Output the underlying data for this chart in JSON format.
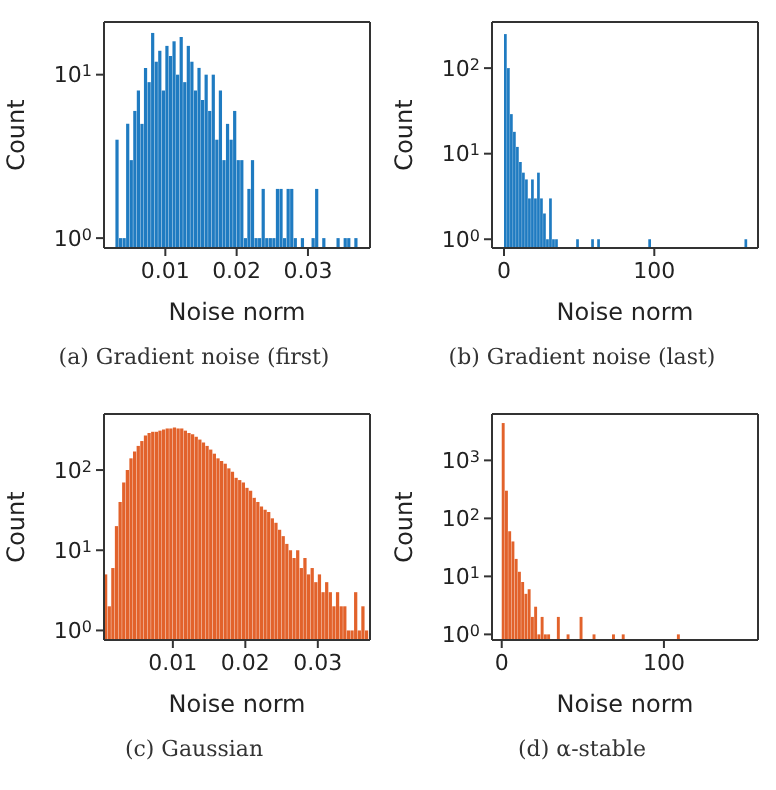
{
  "chart_data": [
    {
      "type": "histogram",
      "title": "(a) Gradient noise (first)",
      "xlabel": "Noise norm",
      "ylabel": "Count",
      "color": "#1f7bc1",
      "log": true,
      "bins": [
        0.003,
        0.0035,
        0.004,
        0.0045,
        0.005,
        0.0055,
        0.006,
        0.0065,
        0.007,
        0.0075,
        0.008,
        0.0085,
        0.009,
        0.0095,
        0.01,
        0.0105,
        0.011,
        0.0115,
        0.012,
        0.0125,
        0.013,
        0.0135,
        0.014,
        0.0145,
        0.015,
        0.0155,
        0.016,
        0.0165,
        0.017,
        0.0175,
        0.018,
        0.0185,
        0.019,
        0.0195,
        0.02,
        0.0205,
        0.021,
        0.0215,
        0.022,
        0.0225,
        0.023,
        0.0235,
        0.024,
        0.0245,
        0.025,
        0.0255,
        0.026,
        0.0265,
        0.027,
        0.0275,
        0.028,
        0.0285,
        0.029,
        0.0295,
        0.03,
        0.0305,
        0.031,
        0.0315,
        0.032,
        0.0325,
        0.033,
        0.0335,
        0.034,
        0.0345,
        0.035,
        0.0355,
        0.036,
        0.0365,
        0.037,
        0.0375
      ],
      "values": [
        4,
        1,
        1,
        5,
        3,
        6,
        8,
        5,
        11,
        9,
        18,
        12,
        14,
        8,
        15,
        13,
        16,
        10,
        17,
        9,
        15,
        12,
        8,
        11,
        7,
        10,
        6,
        10,
        4,
        8,
        3,
        5,
        4,
        6,
        3,
        3,
        1,
        2,
        3,
        1,
        1,
        2,
        1,
        1,
        1,
        2,
        2,
        1,
        2,
        2,
        1,
        null,
        1,
        null,
        null,
        1,
        2,
        null,
        1,
        null,
        null,
        null,
        1,
        null,
        1,
        1,
        null,
        1,
        null
      ],
      "xlim": [
        0.0014,
        0.0387
      ],
      "xticks": [
        0.01,
        0.02,
        0.03
      ],
      "ylim": [
        0.87,
        21
      ],
      "yticks": [
        {
          "value": 1,
          "label": "10$^{0}$"
        },
        {
          "value": 10,
          "label": "10$^{1}$"
        }
      ]
    },
    {
      "type": "histogram",
      "title": "(b) Gradient noise (last)",
      "xlabel": "Noise norm",
      "ylabel": "Count",
      "color": "#1f7bc1",
      "log": true,
      "bins": [
        0,
        2,
        4,
        6,
        8,
        10,
        12,
        14,
        16,
        18,
        20,
        22,
        24,
        26,
        28,
        30,
        32,
        34,
        36,
        38,
        40,
        42,
        44,
        46,
        48,
        50,
        52,
        54,
        56,
        58,
        60,
        62,
        64,
        66,
        68,
        70,
        72,
        74,
        76,
        78,
        80,
        82,
        84,
        86,
        88,
        90,
        92,
        94,
        96,
        98,
        100,
        102,
        104,
        106,
        108,
        110,
        112,
        114,
        116,
        118,
        120,
        122,
        124,
        126,
        128,
        130,
        132,
        134,
        136,
        138,
        140,
        142,
        144,
        146,
        148,
        150,
        152,
        154,
        156,
        158,
        160,
        162
      ],
      "values": [
        250,
        100,
        29,
        18,
        12,
        8,
        6,
        5,
        3,
        5,
        3,
        6,
        3,
        2,
        1,
        3,
        1,
        1,
        null,
        null,
        null,
        null,
        null,
        null,
        1,
        null,
        null,
        null,
        null,
        1,
        null,
        1,
        null,
        null,
        null,
        null,
        null,
        null,
        null,
        null,
        null,
        null,
        null,
        null,
        null,
        null,
        null,
        null,
        1,
        null,
        null,
        null,
        null,
        null,
        null,
        null,
        null,
        null,
        null,
        null,
        null,
        null,
        null,
        null,
        null,
        null,
        null,
        null,
        null,
        null,
        null,
        null,
        null,
        null,
        null,
        null,
        null,
        null,
        null,
        null,
        1
      ],
      "xlim": [
        -8,
        169
      ],
      "xticks": [
        0,
        100
      ],
      "ylim": [
        0.79,
        346
      ],
      "yticks": [
        {
          "value": 1,
          "label": "10$^{0}$"
        },
        {
          "value": 10,
          "label": "10$^{1}$"
        },
        {
          "value": 100,
          "label": "10$^{2}$"
        }
      ]
    },
    {
      "type": "histogram",
      "title": "(c) Gaussian",
      "xlabel": "Noise norm",
      "ylabel": "Count",
      "color": "#e2622b",
      "log": true,
      "bins": [
        0.0005,
        0.001,
        0.0015,
        0.002,
        0.0025,
        0.003,
        0.0035,
        0.004,
        0.0045,
        0.005,
        0.0055,
        0.006,
        0.0065,
        0.007,
        0.0075,
        0.008,
        0.0085,
        0.009,
        0.0095,
        0.01,
        0.0105,
        0.011,
        0.0115,
        0.012,
        0.0125,
        0.013,
        0.0135,
        0.014,
        0.0145,
        0.015,
        0.0155,
        0.016,
        0.0165,
        0.017,
        0.0175,
        0.018,
        0.0185,
        0.019,
        0.0195,
        0.02,
        0.0205,
        0.021,
        0.0215,
        0.022,
        0.0225,
        0.023,
        0.0235,
        0.024,
        0.0245,
        0.025,
        0.0255,
        0.026,
        0.0265,
        0.027,
        0.0275,
        0.028,
        0.0285,
        0.029,
        0.0295,
        0.03,
        0.0305,
        0.031,
        0.0315,
        0.032,
        0.0325,
        0.033,
        0.0335,
        0.034,
        0.0345,
        0.035,
        0.0355,
        0.036,
        0.0365,
        0.037
      ],
      "values": [
        5,
        2,
        6,
        20,
        40,
        70,
        100,
        140,
        170,
        200,
        230,
        270,
        290,
        300,
        300,
        310,
        320,
        330,
        330,
        340,
        330,
        330,
        310,
        290,
        280,
        260,
        240,
        220,
        200,
        180,
        160,
        140,
        130,
        120,
        105,
        95,
        80,
        75,
        70,
        60,
        55,
        45,
        40,
        35,
        32,
        30,
        25,
        22,
        18,
        15,
        12,
        10,
        8,
        10,
        6,
        8,
        5,
        6,
        4,
        5,
        3,
        4,
        3,
        2,
        3,
        2,
        2,
        1,
        1,
        3,
        1,
        2,
        1
      ],
      "xlim": [
        0.0005,
        0.0372
      ],
      "xticks": [
        0.01,
        0.02,
        0.03
      ],
      "ylim": [
        0.76,
        500
      ],
      "yticks": [
        {
          "value": 1,
          "label": "10$^{0}$"
        },
        {
          "value": 10,
          "label": "10$^{1}$"
        },
        {
          "value": 100,
          "label": "10$^{2}$"
        }
      ]
    },
    {
      "type": "histogram",
      "title": "(d) α-stable",
      "xlabel": "Noise norm",
      "ylabel": "Count",
      "color": "#e2622b",
      "log": true,
      "bins": [
        0,
        2,
        4,
        6,
        8,
        10,
        12,
        14,
        16,
        18,
        20,
        22,
        24,
        26,
        28,
        30,
        32,
        34,
        36,
        38,
        40,
        42,
        44,
        46,
        48,
        50,
        52,
        54,
        56,
        58,
        60,
        62,
        64,
        66,
        68,
        70,
        72,
        74,
        76,
        78,
        80,
        82,
        84,
        86,
        88,
        90,
        92,
        94,
        96,
        98,
        100,
        102,
        104,
        106,
        108,
        110
      ],
      "values": [
        4400,
        300,
        60,
        40,
        20,
        12,
        8,
        5,
        6,
        2,
        3,
        1,
        2,
        1,
        1,
        null,
        null,
        2,
        null,
        null,
        1,
        null,
        null,
        null,
        2,
        null,
        null,
        null,
        1,
        null,
        null,
        null,
        null,
        null,
        1,
        null,
        null,
        1,
        null,
        null,
        null,
        null,
        null,
        null,
        null,
        null,
        null,
        null,
        null,
        null,
        null,
        null,
        null,
        null,
        1
      ],
      "xlim": [
        -6,
        158
      ],
      "xticks": [
        0,
        100
      ],
      "ylim": [
        0.8,
        6300
      ],
      "yticks": [
        {
          "value": 1,
          "label": "10$^{0}$"
        },
        {
          "value": 10,
          "label": "10$^{1}$"
        },
        {
          "value": 100,
          "label": "10$^{2}$"
        },
        {
          "value": 1000,
          "label": "10$^{3}$"
        }
      ]
    }
  ]
}
